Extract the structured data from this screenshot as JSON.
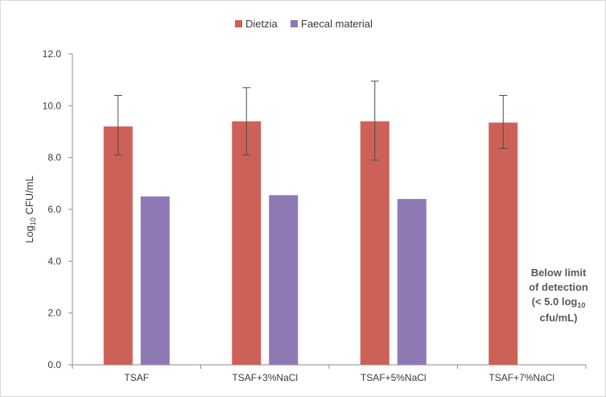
{
  "chart_data": {
    "type": "bar",
    "title": "",
    "xlabel": "",
    "ylabel": "Log",
    "ylabel_subscript": "10",
    "ylabel_suffix": " CFU/mL",
    "ylim": [
      0,
      12
    ],
    "yticks": [
      "0.0",
      "2.0",
      "4.0",
      "6.0",
      "8.0",
      "10.0",
      "12.0"
    ],
    "categories": [
      "TSAF",
      "TSAF+3%NaCl",
      "TSAF+5%NaCl",
      "TSAF+7%NaCl"
    ],
    "legend_position": "top-center",
    "series": [
      {
        "name": "Dietzia",
        "color": "#cd6158",
        "values": [
          9.2,
          9.4,
          9.4,
          9.35
        ],
        "error_low": [
          8.1,
          8.1,
          7.9,
          8.35
        ],
        "error_high": [
          10.4,
          10.7,
          10.95,
          10.4
        ]
      },
      {
        "name": "Faecal material",
        "color": "#8e79b4",
        "values": [
          6.5,
          6.55,
          6.4,
          null
        ]
      }
    ],
    "annotation": {
      "lines": [
        "Below limit",
        "of detection",
        "(< 5.0 log",
        "cfu/mL)"
      ],
      "subscript": "10"
    }
  }
}
